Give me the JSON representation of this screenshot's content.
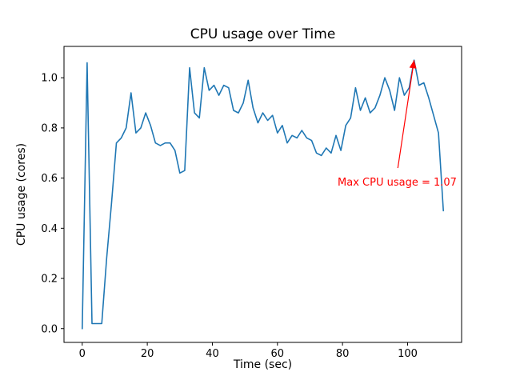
{
  "figure": {
    "title": "CPU usage over Time",
    "xlabel": "Time (sec)",
    "ylabel": "CPU usage (cores)"
  },
  "chart_data": {
    "type": "line",
    "title": "CPU usage over Time",
    "xlabel": "Time (sec)",
    "ylabel": "CPU usage (cores)",
    "grid": false,
    "legend_position": "none",
    "xlim": [
      -5.6,
      116.6
    ],
    "ylim": [
      -0.055,
      1.125
    ],
    "xtick_values": [
      0,
      20,
      40,
      60,
      80,
      100
    ],
    "xtick_labels": [
      "0",
      "20",
      "40",
      "60",
      "80",
      "100"
    ],
    "ytick_values": [
      0.0,
      0.2,
      0.4,
      0.6,
      0.8,
      1.0
    ],
    "ytick_labels": [
      "0.0",
      "0.2",
      "0.4",
      "0.6",
      "0.8",
      "1.0"
    ],
    "line_color": "#1f77b4",
    "series": [
      {
        "name": "CPU usage",
        "x": [
          0,
          1.5,
          3,
          4.5,
          6,
          7.5,
          9,
          10.5,
          12,
          13.5,
          15,
          16.5,
          18,
          19.5,
          21,
          22.5,
          24,
          25.5,
          27,
          28.5,
          30,
          31.5,
          33,
          34.5,
          36,
          37.5,
          39,
          40.5,
          42,
          43.5,
          45,
          46.5,
          48,
          49.5,
          51,
          52.5,
          54,
          55.5,
          57,
          58.5,
          60,
          61.5,
          63,
          64.5,
          66,
          67.5,
          69,
          70.5,
          72,
          73.5,
          75,
          76.5,
          78,
          79.5,
          81,
          82.5,
          84,
          85.5,
          87,
          88.5,
          90,
          91.5,
          93,
          94.5,
          96,
          97.5,
          99,
          100.5,
          102,
          103.5,
          105,
          106.5,
          108,
          109.5,
          111
        ],
        "y": [
          0.0,
          1.06,
          0.02,
          0.02,
          0.02,
          0.28,
          0.5,
          0.74,
          0.76,
          0.8,
          0.94,
          0.78,
          0.8,
          0.86,
          0.81,
          0.74,
          0.73,
          0.74,
          0.74,
          0.71,
          0.62,
          0.63,
          1.04,
          0.86,
          0.84,
          1.04,
          0.95,
          0.97,
          0.93,
          0.97,
          0.96,
          0.87,
          0.86,
          0.9,
          0.99,
          0.88,
          0.82,
          0.86,
          0.83,
          0.85,
          0.78,
          0.81,
          0.74,
          0.77,
          0.76,
          0.79,
          0.76,
          0.75,
          0.7,
          0.69,
          0.72,
          0.7,
          0.77,
          0.71,
          0.81,
          0.84,
          0.96,
          0.87,
          0.92,
          0.86,
          0.88,
          0.93,
          1.0,
          0.95,
          0.87,
          1.0,
          0.93,
          0.96,
          1.07,
          0.97,
          0.98,
          0.92,
          0.85,
          0.78,
          0.47
        ]
      }
    ],
    "max_value": 1.07,
    "annotation": {
      "text": "Max CPU usage = 1.07",
      "color": "#ff0000",
      "text_xy": [
        78.5,
        0.57
      ],
      "arrow_from": [
        97,
        0.64
      ],
      "arrow_to": [
        102,
        1.07
      ]
    }
  }
}
